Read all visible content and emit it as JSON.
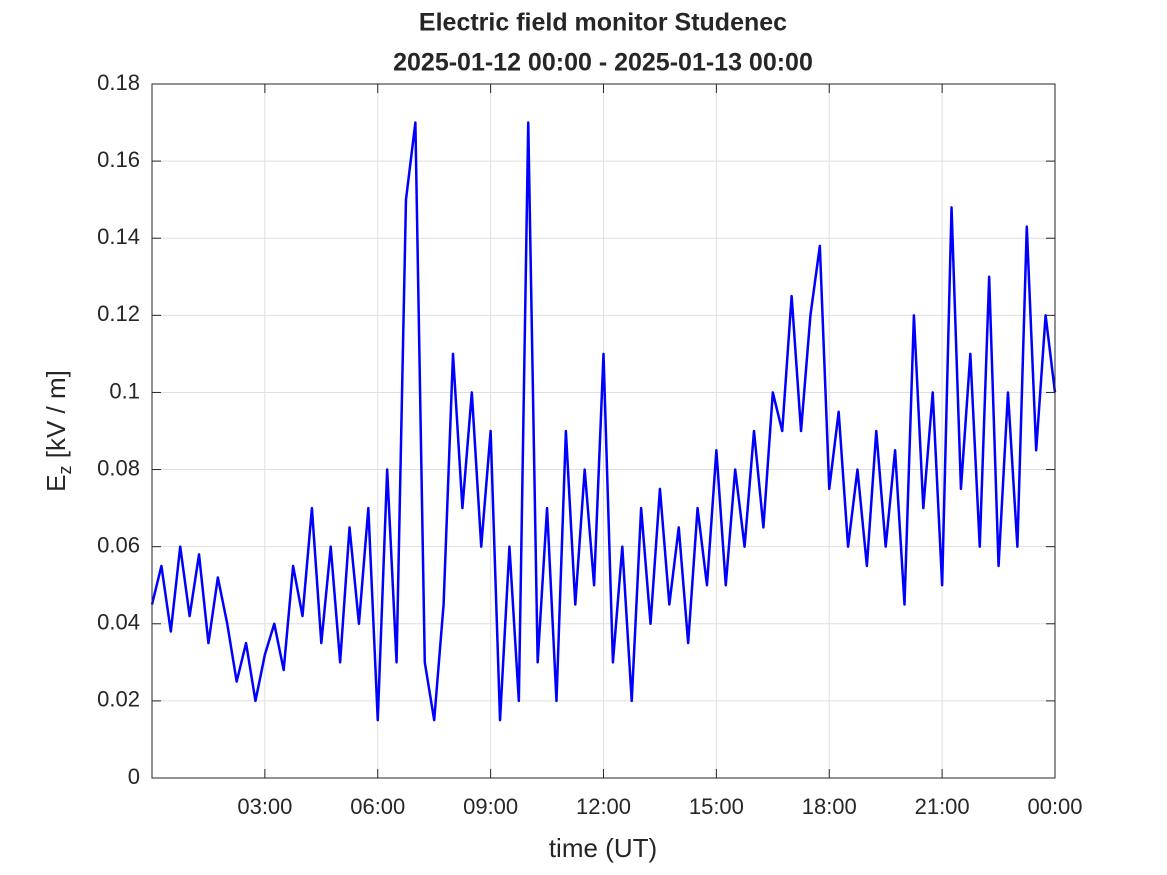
{
  "chart_data": {
    "type": "line",
    "title": "Electric field monitor Studenec",
    "subtitle": "2025-01-12 00:00 - 2025-01-13 00:00",
    "xlabel": "time (UT)",
    "ylabel": [
      "E",
      "z",
      " [kV / m]"
    ],
    "x": [
      0,
      0.25,
      0.5,
      0.75,
      1,
      1.25,
      1.5,
      1.75,
      2,
      2.25,
      2.5,
      2.75,
      3,
      3.25,
      3.5,
      3.75,
      4,
      4.25,
      4.5,
      4.75,
      5,
      5.25,
      5.5,
      5.75,
      6,
      6.25,
      6.5,
      6.75,
      7,
      7.25,
      7.5,
      7.75,
      8,
      8.25,
      8.5,
      8.75,
      9,
      9.25,
      9.5,
      9.75,
      10,
      10.25,
      10.5,
      10.75,
      11,
      11.25,
      11.5,
      11.75,
      12,
      12.25,
      12.5,
      12.75,
      13,
      13.25,
      13.5,
      13.75,
      14,
      14.25,
      14.5,
      14.75,
      15,
      15.25,
      15.5,
      15.75,
      16,
      16.25,
      16.5,
      16.75,
      17,
      17.25,
      17.5,
      17.75,
      18,
      18.25,
      18.5,
      18.75,
      19,
      19.25,
      19.5,
      19.75,
      20,
      20.25,
      20.5,
      20.75,
      21,
      21.25,
      21.5,
      21.75,
      22,
      22.25,
      22.5,
      22.75,
      23,
      23.25,
      23.5,
      23.75,
      24
    ],
    "series": [
      {
        "name": "Ez",
        "color": "#0000ff",
        "values": [
          0.045,
          0.055,
          0.038,
          0.06,
          0.042,
          0.058,
          0.035,
          0.052,
          0.04,
          0.025,
          0.035,
          0.02,
          0.032,
          0.04,
          0.028,
          0.055,
          0.042,
          0.07,
          0.035,
          0.06,
          0.03,
          0.065,
          0.04,
          0.07,
          0.015,
          0.08,
          0.03,
          0.15,
          0.17,
          0.03,
          0.015,
          0.045,
          0.11,
          0.07,
          0.1,
          0.06,
          0.09,
          0.015,
          0.06,
          0.02,
          0.17,
          0.03,
          0.07,
          0.02,
          0.09,
          0.045,
          0.08,
          0.05,
          0.11,
          0.03,
          0.06,
          0.02,
          0.07,
          0.04,
          0.075,
          0.045,
          0.065,
          0.035,
          0.07,
          0.05,
          0.085,
          0.05,
          0.08,
          0.06,
          0.09,
          0.065,
          0.1,
          0.09,
          0.125,
          0.09,
          0.12,
          0.138,
          0.075,
          0.095,
          0.06,
          0.08,
          0.055,
          0.09,
          0.06,
          0.085,
          0.045,
          0.12,
          0.07,
          0.1,
          0.05,
          0.148,
          0.075,
          0.11,
          0.06,
          0.13,
          0.055,
          0.1,
          0.06,
          0.143,
          0.085,
          0.12,
          0.1
        ]
      }
    ],
    "xlim": [
      0,
      24
    ],
    "xticks": [
      {
        "value": 3,
        "label": "03:00"
      },
      {
        "value": 6,
        "label": "06:00"
      },
      {
        "value": 9,
        "label": "09:00"
      },
      {
        "value": 12,
        "label": "12:00"
      },
      {
        "value": 15,
        "label": "15:00"
      },
      {
        "value": 18,
        "label": "18:00"
      },
      {
        "value": 21,
        "label": "21:00"
      },
      {
        "value": 24,
        "label": "00:00"
      }
    ],
    "ylim": [
      0,
      0.18
    ],
    "yticks": [
      0,
      0.02,
      0.04,
      0.06,
      0.08,
      0.1,
      0.12,
      0.14,
      0.16,
      0.18
    ],
    "grid": true
  }
}
